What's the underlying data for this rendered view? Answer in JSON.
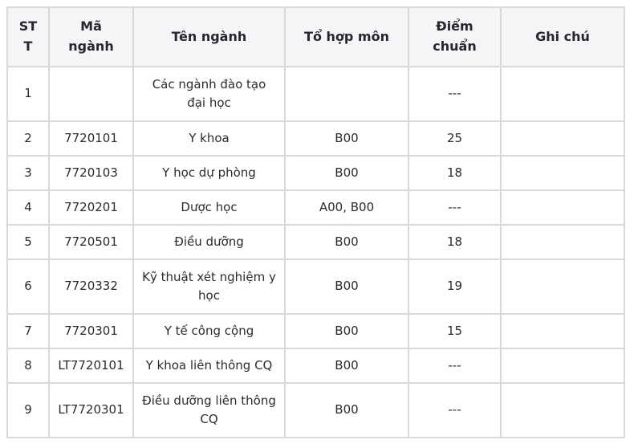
{
  "table": {
    "columns": [
      "STT",
      "Mã ngành",
      "Tên ngành",
      "Tổ hợp môn",
      "Điểm chuẩn",
      "Ghi chú"
    ],
    "rows": [
      {
        "stt": "1",
        "ma_nganh": "",
        "ten_nganh": "Các ngành đào tạo đại học",
        "to_hop_mon": "",
        "diem_chuan": "---",
        "ghi_chu": ""
      },
      {
        "stt": "2",
        "ma_nganh": "7720101",
        "ten_nganh": "Y khoa",
        "to_hop_mon": "B00",
        "diem_chuan": "25",
        "ghi_chu": ""
      },
      {
        "stt": "3",
        "ma_nganh": "7720103",
        "ten_nganh": "Y học dự phòng",
        "to_hop_mon": "B00",
        "diem_chuan": "18",
        "ghi_chu": ""
      },
      {
        "stt": "4",
        "ma_nganh": "7720201",
        "ten_nganh": "Dược học",
        "to_hop_mon": "A00, B00",
        "diem_chuan": "---",
        "ghi_chu": ""
      },
      {
        "stt": "5",
        "ma_nganh": "7720501",
        "ten_nganh": "Điều dưỡng",
        "to_hop_mon": "B00",
        "diem_chuan": "18",
        "ghi_chu": ""
      },
      {
        "stt": "6",
        "ma_nganh": "7720332",
        "ten_nganh": "Kỹ thuật xét nghiệm y học",
        "to_hop_mon": "B00",
        "diem_chuan": "19",
        "ghi_chu": ""
      },
      {
        "stt": "7",
        "ma_nganh": "7720301",
        "ten_nganh": "Y tế công cộng",
        "to_hop_mon": "B00",
        "diem_chuan": "15",
        "ghi_chu": ""
      },
      {
        "stt": "8",
        "ma_nganh": "LT7720101",
        "ten_nganh": "Y khoa liên thông CQ",
        "to_hop_mon": "B00",
        "diem_chuan": "---",
        "ghi_chu": ""
      },
      {
        "stt": "9",
        "ma_nganh": "LT7720301",
        "ten_nganh": "Điều dưỡng liên thông CQ",
        "to_hop_mon": "B00",
        "diem_chuan": "---",
        "ghi_chu": ""
      }
    ]
  },
  "colors": {
    "header_bg": "#f5f5f7",
    "border": "#d9d9d9",
    "text": "#2b2b31"
  }
}
